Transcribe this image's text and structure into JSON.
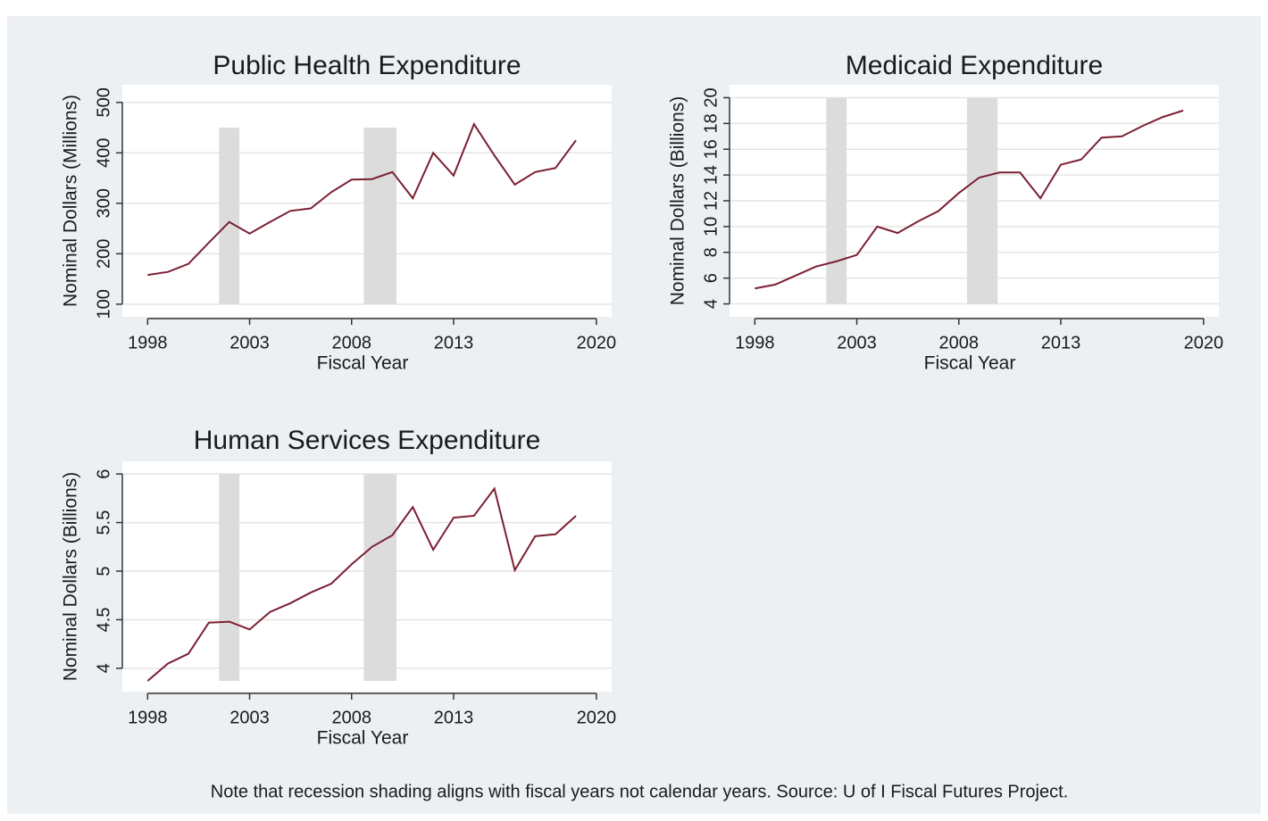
{
  "chart_data": [
    {
      "type": "line",
      "title": "Public Health Expenditure",
      "x_label": "Fiscal Year",
      "y_label": "Nominal Dollars (Millions)",
      "x": [
        1998,
        1999,
        2000,
        2001,
        2002,
        2003,
        2004,
        2005,
        2006,
        2007,
        2008,
        2009,
        2010,
        2011,
        2012,
        2013,
        2014,
        2015,
        2016,
        2017,
        2018,
        2019
      ],
      "values": [
        158,
        164,
        180,
        222,
        263,
        240,
        263,
        285,
        290,
        322,
        347,
        348,
        362,
        310,
        400,
        355,
        457,
        395,
        337,
        362,
        370,
        425
      ],
      "color": "#7b1f32",
      "xlim": [
        1996.76,
        2020.75
      ],
      "xticks": [
        1998,
        2003,
        2008,
        2013,
        2020
      ],
      "ylim": [
        75,
        535
      ],
      "yticks": [
        100,
        200,
        300,
        400,
        500
      ],
      "grid": true,
      "recessions": [
        {
          "x": [
            2001.5,
            2002.5
          ],
          "y": [
            100,
            450
          ]
        },
        {
          "x": [
            2008.6,
            2010.2
          ],
          "y": [
            100,
            450
          ]
        }
      ]
    },
    {
      "type": "line",
      "title": "Medicaid Expenditure",
      "x_label": "Fiscal Year",
      "y_label": "Nominal Dollars (Billions)",
      "x": [
        1998,
        1999,
        2000,
        2001,
        2002,
        2003,
        2004,
        2005,
        2006,
        2007,
        2008,
        2009,
        2010,
        2011,
        2012,
        2013,
        2014,
        2015,
        2016,
        2017,
        2018,
        2019
      ],
      "values": [
        5.2,
        5.5,
        6.2,
        6.9,
        7.3,
        7.8,
        10.0,
        9.5,
        10.4,
        11.2,
        12.6,
        13.8,
        14.2,
        14.2,
        12.2,
        14.8,
        15.2,
        16.9,
        17.0,
        17.8,
        18.5,
        19.0
      ],
      "color": "#7b1f32",
      "xlim": [
        1996.76,
        2020.75
      ],
      "xticks": [
        1998,
        2003,
        2008,
        2013,
        2020
      ],
      "ylim": [
        3,
        21
      ],
      "yticks": [
        4,
        6,
        8,
        10,
        12,
        14,
        16,
        18,
        20
      ],
      "grid": true,
      "recessions": [
        {
          "x": [
            2001.5,
            2002.5
          ],
          "y": [
            4,
            20
          ]
        },
        {
          "x": [
            2008.4,
            2009.9
          ],
          "y": [
            4,
            20
          ]
        }
      ]
    },
    {
      "type": "line",
      "title": "Human Services Expenditure",
      "x_label": "Fiscal Year",
      "y_label": "Nominal Dollars (Billions)",
      "x": [
        1998,
        1999,
        2000,
        2001,
        2002,
        2003,
        2004,
        2005,
        2006,
        2007,
        2008,
        2009,
        2010,
        2011,
        2012,
        2013,
        2014,
        2015,
        2016,
        2017,
        2018,
        2019
      ],
      "values": [
        3.87,
        4.05,
        4.15,
        4.47,
        4.48,
        4.4,
        4.58,
        4.67,
        4.78,
        4.87,
        5.07,
        5.25,
        5.37,
        5.66,
        5.22,
        5.55,
        5.57,
        5.85,
        5.01,
        5.36,
        5.38,
        5.57
      ],
      "color": "#7b1f32",
      "xlim": [
        1996.76,
        2020.75
      ],
      "xticks": [
        1998,
        2003,
        2008,
        2013,
        2020
      ],
      "ylim": [
        3.76,
        6.13
      ],
      "yticks": [
        4,
        4.5,
        5,
        5.5,
        6
      ],
      "grid": true,
      "recessions": [
        {
          "x": [
            2001.5,
            2002.5
          ],
          "y": [
            3.87,
            6
          ]
        },
        {
          "x": [
            2008.6,
            2010.2
          ],
          "y": [
            3.87,
            6
          ]
        }
      ]
    }
  ],
  "note": "Note that recession shading aligns with fiscal years not calendar years. Source: U of I Fiscal Futures Project."
}
